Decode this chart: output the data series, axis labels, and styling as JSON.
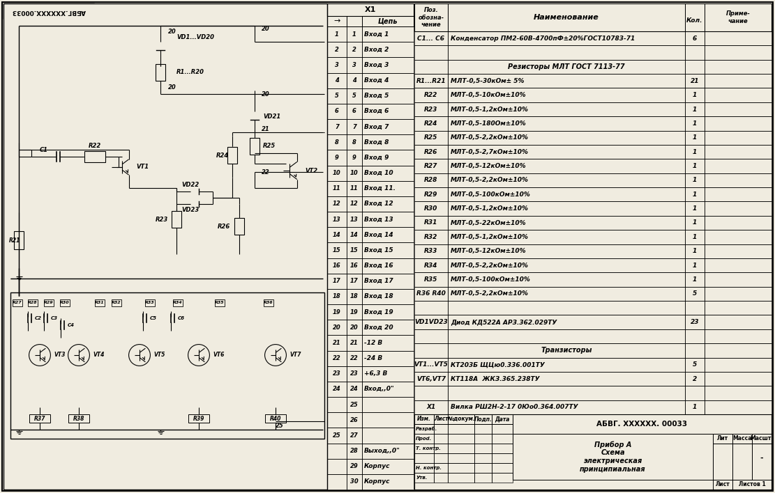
{
  "bg_color": "#f0ece0",
  "line_color": "#000000",
  "title_stamp": "АБВГ.XXXXXX.00033",
  "connector_pins": [
    [
      "1",
      "1",
      "Вход 1"
    ],
    [
      "2",
      "2",
      "Вход 2"
    ],
    [
      "3",
      "3",
      "Вход 3"
    ],
    [
      "4",
      "4",
      "Вход 4"
    ],
    [
      "5",
      "5",
      "Вход 5"
    ],
    [
      "6",
      "6",
      "Вход 6"
    ],
    [
      "7",
      "7",
      "Вход 7"
    ],
    [
      "8",
      "8",
      "Вход 8"
    ],
    [
      "9",
      "9",
      "Вход 9"
    ],
    [
      "10",
      "10",
      "Вход 10"
    ],
    [
      "11",
      "11",
      "Вход 11."
    ],
    [
      "12",
      "12",
      "Вход 12"
    ],
    [
      "13",
      "13",
      "Вход 13"
    ],
    [
      "14",
      "14",
      "Вход 14"
    ],
    [
      "15",
      "15",
      "Вход 15"
    ],
    [
      "16",
      "16",
      "Вход 16"
    ],
    [
      "17",
      "17",
      "Вход 17"
    ],
    [
      "18",
      "18",
      "Вход 18"
    ],
    [
      "19",
      "19",
      "Вход 19"
    ],
    [
      "20",
      "20",
      "Вход 20"
    ],
    [
      "21",
      "21",
      "-12 В"
    ],
    [
      "22",
      "22",
      "-24 В"
    ],
    [
      "23",
      "23",
      "+6,3 В"
    ],
    [
      "24",
      "24",
      "Вход,,0\""
    ],
    [
      "",
      "25",
      ""
    ],
    [
      "",
      "26",
      ""
    ],
    [
      "25",
      "27",
      ""
    ],
    [
      "",
      "28",
      "Выход,,0\""
    ],
    [
      "",
      "29",
      "Корпус"
    ],
    [
      "",
      "30",
      "Корпус"
    ]
  ],
  "bom_rows": [
    [
      "C1... C6",
      "Конденсатор ПМ2-60В-4700пФ±20%ГОСТ10783-71",
      "6",
      ""
    ],
    [
      "",
      "",
      "",
      ""
    ],
    [
      "",
      "Резисторы МЛТ ГОСТ 7113-77",
      "",
      ""
    ],
    [
      "R1...R21",
      "МЛТ-0,5-30кОм± 5%",
      "21",
      ""
    ],
    [
      "R22",
      "МЛТ-0,5-10кОм±10%",
      "1",
      ""
    ],
    [
      "R23",
      "МЛТ-0,5-1,2кОм±10%",
      "1",
      ""
    ],
    [
      "R24",
      "МЛТ-0,5-180Ом±10%",
      "1",
      ""
    ],
    [
      "R25",
      "МЛТ-0,5-2,2кОм±10%",
      "1",
      ""
    ],
    [
      "R26",
      "МЛТ-0,5-2,7кОм±10%",
      "1",
      ""
    ],
    [
      "R27",
      "МЛТ-0,5-12кОм±10%",
      "1",
      ""
    ],
    [
      "R28",
      "МЛТ-0,5-2,2кОм±10%",
      "1",
      ""
    ],
    [
      "R29",
      "МЛТ-0,5-100кОм±10%",
      "1",
      ""
    ],
    [
      "R30",
      "МЛТ-0,5-1,2кОм±10%",
      "1",
      ""
    ],
    [
      "R31",
      "МЛТ-0,5-22кОм±10%",
      "1",
      ""
    ],
    [
      "R32",
      "МЛТ-0,5-1,2кОм±10%",
      "1",
      ""
    ],
    [
      "R33",
      "МЛТ-0,5-12кОм±10%",
      "1",
      ""
    ],
    [
      "R34",
      "МЛТ-0,5-2,2кОм±10%",
      "1",
      ""
    ],
    [
      "R35",
      "МЛТ-0,5-100кОм±10%",
      "1",
      ""
    ],
    [
      "R36 R40",
      "МЛТ-0,5-2,2кОм±10%",
      "5",
      ""
    ],
    [
      "",
      "",
      "",
      ""
    ],
    [
      "VD1VD23",
      "Диод КД522А АРЗ.362.029ТУ",
      "23",
      ""
    ],
    [
      "",
      "",
      "",
      ""
    ],
    [
      "",
      "Транзисторы",
      "",
      ""
    ],
    [
      "VT1...VT5",
      "КТ203Б ЩЦю0.336.001ТУ",
      "5",
      ""
    ],
    [
      "VT6,VT7",
      "КТ118А  ЖКЗ.365.238ТУ",
      "2",
      ""
    ],
    [
      "",
      "",
      "",
      ""
    ],
    [
      "X1",
      "Вилка РШ2Н-2-17 0Юо0.364.007ТУ",
      "1",
      ""
    ]
  ],
  "stamp_left_rows": [
    "Изм.",
    "Лист",
    "№докум.",
    "Подп.",
    "Дата"
  ],
  "stamp_side_rows": [
    "Разраб.",
    "Проd.",
    "Т. контр.",
    "",
    "Н. контр.",
    "Утв."
  ],
  "stamp_doc_num": "АБВГ. XXXXXX. 00033",
  "stamp_title": "Прибор А\nСхема\nэлектрическая\nпринципиальная",
  "stamp_lit": "Лит",
  "stamp_mass": "Масса",
  "stamp_scale": "Масшт.",
  "stamp_list": "Лист",
  "stamp_listov": "Листов 1"
}
